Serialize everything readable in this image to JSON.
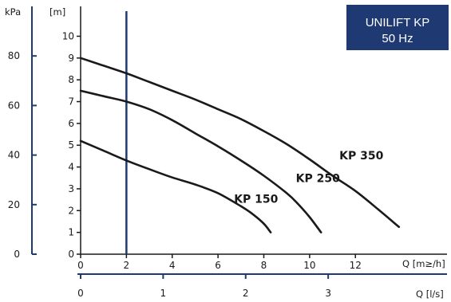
{
  "title_box": {
    "line1": "UNILIFT KP",
    "line2": "50 Hz",
    "bg_color": "#1f3a73",
    "text_color": "#ffffff"
  },
  "colors": {
    "accent": "#1f3a73",
    "ink": "#1a1a1a"
  },
  "chart_data": {
    "type": "line",
    "grid": false,
    "legend": "none",
    "axes": {
      "left_kpa": {
        "label": "kPa",
        "ticks": [
          "0",
          "20",
          "40",
          "60",
          "80"
        ],
        "range": [
          0,
          100
        ]
      },
      "left_m": {
        "label": "[m]",
        "ticks": [
          "0",
          "1",
          "2",
          "3",
          "4",
          "5",
          "6",
          "7",
          "8",
          "9",
          "10"
        ],
        "range": [
          0,
          10.2
        ]
      },
      "bottom_m3h": {
        "label": "Q [m≥/h]",
        "ticks": [
          "0",
          "2",
          "4",
          "6",
          "8",
          "10",
          "12"
        ],
        "range": [
          0,
          16
        ]
      },
      "bottom_ls": {
        "label": "Q [l/s]",
        "ticks": [
          "0",
          "1",
          "2",
          "3"
        ],
        "range": [
          0,
          4.44
        ]
      }
    },
    "vertical_marker_x_m3h": 2,
    "series": [
      {
        "name": "KP 150",
        "label": "KP 150",
        "x": [
          0,
          1,
          2,
          3,
          4,
          5,
          6,
          7,
          7.5,
          8,
          8.3
        ],
        "y": [
          5.2,
          4.75,
          4.3,
          3.9,
          3.52,
          3.2,
          2.8,
          2.2,
          1.85,
          1.4,
          1.0
        ]
      },
      {
        "name": "KP 250",
        "label": "KP 250",
        "x": [
          0,
          1,
          2,
          3,
          4,
          5,
          6,
          7,
          8,
          9,
          9.5,
          10,
          10.5
        ],
        "y": [
          7.5,
          7.25,
          7.0,
          6.65,
          6.15,
          5.55,
          4.95,
          4.3,
          3.6,
          2.8,
          2.3,
          1.7,
          1.0
        ]
      },
      {
        "name": "KP 350",
        "label": "KP 350",
        "x": [
          0,
          1,
          2,
          3,
          4,
          5,
          6,
          7,
          8,
          9,
          10,
          11,
          12,
          13,
          13.9
        ],
        "y": [
          9.0,
          8.65,
          8.3,
          7.9,
          7.5,
          7.1,
          6.65,
          6.2,
          5.65,
          5.05,
          4.35,
          3.6,
          2.9,
          2.05,
          1.25
        ]
      }
    ]
  }
}
